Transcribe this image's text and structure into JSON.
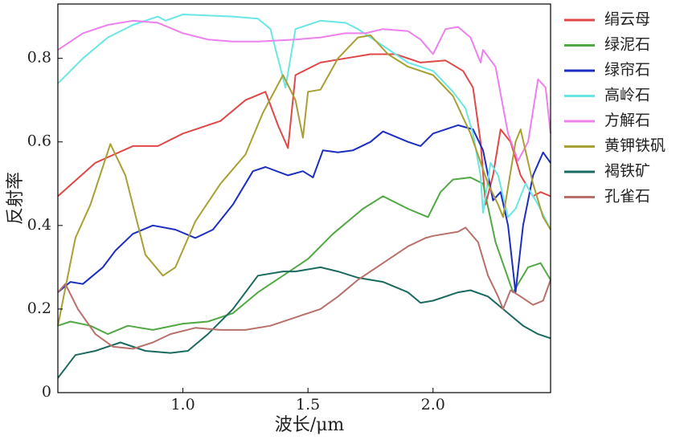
{
  "chart_data": {
    "type": "line",
    "x_label": "波长/μm",
    "y_label": "反射率",
    "xlim": [
      0.5,
      2.47
    ],
    "ylim": [
      0,
      0.93
    ],
    "xticks": [
      {
        "value": 1,
        "label": "1.0"
      },
      {
        "value": 1.5,
        "label": "1.5"
      },
      {
        "value": 2,
        "label": "2.0"
      }
    ],
    "yticks": [
      0,
      0.2,
      0.4,
      0.6,
      0.8
    ],
    "series": [
      {
        "name": "绢云母",
        "color": "#e04848",
        "x": [
          0.5,
          0.65,
          0.8,
          0.9,
          1.0,
          1.15,
          1.25,
          1.33,
          1.38,
          1.42,
          1.45,
          1.55,
          1.65,
          1.75,
          1.85,
          1.95,
          2.05,
          2.12,
          2.16,
          2.19,
          2.21,
          2.24,
          2.27,
          2.31,
          2.35,
          2.4,
          2.43,
          2.47
        ],
        "values": [
          0.47,
          0.55,
          0.59,
          0.59,
          0.62,
          0.65,
          0.7,
          0.72,
          0.64,
          0.585,
          0.76,
          0.79,
          0.8,
          0.81,
          0.81,
          0.79,
          0.795,
          0.77,
          0.73,
          0.6,
          0.45,
          0.52,
          0.63,
          0.6,
          0.52,
          0.47,
          0.48,
          0.47
        ]
      },
      {
        "name": "绿泥石",
        "color": "#52a844",
        "x": [
          0.5,
          0.55,
          0.63,
          0.7,
          0.78,
          0.88,
          1.0,
          1.1,
          1.2,
          1.3,
          1.4,
          1.5,
          1.6,
          1.72,
          1.8,
          1.9,
          1.98,
          2.03,
          2.08,
          2.15,
          2.2,
          2.25,
          2.32,
          2.38,
          2.43,
          2.47
        ],
        "values": [
          0.16,
          0.17,
          0.16,
          0.14,
          0.16,
          0.15,
          0.165,
          0.17,
          0.19,
          0.24,
          0.28,
          0.32,
          0.38,
          0.44,
          0.47,
          0.44,
          0.42,
          0.48,
          0.51,
          0.515,
          0.5,
          0.36,
          0.24,
          0.3,
          0.31,
          0.27
        ]
      },
      {
        "name": "绿帘石",
        "color": "#1c2ec0",
        "x": [
          0.5,
          0.55,
          0.6,
          0.68,
          0.73,
          0.8,
          0.88,
          0.97,
          1.05,
          1.12,
          1.2,
          1.28,
          1.33,
          1.42,
          1.48,
          1.52,
          1.56,
          1.62,
          1.68,
          1.75,
          1.8,
          1.9,
          1.95,
          2.0,
          2.1,
          2.16,
          2.2,
          2.24,
          2.27,
          2.3,
          2.33,
          2.36,
          2.4,
          2.44,
          2.47
        ],
        "values": [
          0.24,
          0.265,
          0.26,
          0.3,
          0.34,
          0.38,
          0.4,
          0.39,
          0.37,
          0.39,
          0.45,
          0.53,
          0.54,
          0.52,
          0.53,
          0.515,
          0.58,
          0.575,
          0.58,
          0.6,
          0.625,
          0.6,
          0.59,
          0.62,
          0.64,
          0.63,
          0.58,
          0.46,
          0.48,
          0.4,
          0.24,
          0.4,
          0.52,
          0.575,
          0.55
        ]
      },
      {
        "name": "高岭石",
        "color": "#6ae6e6",
        "x": [
          0.5,
          0.6,
          0.7,
          0.8,
          0.9,
          0.93,
          1.0,
          1.2,
          1.3,
          1.35,
          1.38,
          1.41,
          1.45,
          1.55,
          1.65,
          1.7,
          1.8,
          1.9,
          2.0,
          2.08,
          2.13,
          2.16,
          2.19,
          2.2,
          2.23,
          2.26,
          2.3,
          2.33,
          2.37,
          2.42,
          2.47
        ],
        "values": [
          0.74,
          0.8,
          0.85,
          0.88,
          0.9,
          0.89,
          0.905,
          0.9,
          0.895,
          0.87,
          0.8,
          0.73,
          0.87,
          0.89,
          0.885,
          0.87,
          0.83,
          0.79,
          0.77,
          0.72,
          0.68,
          0.62,
          0.52,
          0.43,
          0.55,
          0.52,
          0.42,
          0.44,
          0.5,
          0.45,
          0.39
        ]
      },
      {
        "name": "方解石",
        "color": "#ec80ec",
        "x": [
          0.5,
          0.6,
          0.7,
          0.8,
          0.9,
          1.0,
          1.1,
          1.2,
          1.3,
          1.45,
          1.55,
          1.65,
          1.73,
          1.8,
          1.9,
          1.95,
          2.0,
          2.05,
          2.1,
          2.15,
          2.19,
          2.2,
          2.25,
          2.3,
          2.34,
          2.38,
          2.42,
          2.45,
          2.47
        ],
        "values": [
          0.82,
          0.86,
          0.88,
          0.89,
          0.885,
          0.86,
          0.845,
          0.84,
          0.84,
          0.845,
          0.85,
          0.86,
          0.86,
          0.87,
          0.865,
          0.845,
          0.81,
          0.87,
          0.875,
          0.85,
          0.79,
          0.82,
          0.78,
          0.62,
          0.555,
          0.6,
          0.75,
          0.73,
          0.62
        ]
      },
      {
        "name": "黄钾铁矾",
        "color": "#a8a032",
        "x": [
          0.5,
          0.57,
          0.63,
          0.71,
          0.77,
          0.85,
          0.92,
          0.97,
          1.05,
          1.15,
          1.25,
          1.32,
          1.4,
          1.45,
          1.48,
          1.5,
          1.55,
          1.62,
          1.7,
          1.75,
          1.82,
          1.9,
          2.0,
          2.08,
          2.15,
          2.22,
          2.26,
          2.28,
          2.33,
          2.35,
          2.4,
          2.44,
          2.47
        ],
        "values": [
          0.16,
          0.37,
          0.45,
          0.595,
          0.52,
          0.33,
          0.28,
          0.3,
          0.41,
          0.5,
          0.57,
          0.67,
          0.76,
          0.7,
          0.61,
          0.72,
          0.725,
          0.8,
          0.85,
          0.855,
          0.81,
          0.78,
          0.76,
          0.71,
          0.62,
          0.5,
          0.45,
          0.42,
          0.6,
          0.63,
          0.5,
          0.42,
          0.39
        ]
      },
      {
        "name": "褐铁矿",
        "color": "#1b6a60",
        "x": [
          0.5,
          0.57,
          0.65,
          0.75,
          0.85,
          0.95,
          1.02,
          1.1,
          1.2,
          1.3,
          1.4,
          1.45,
          1.55,
          1.62,
          1.7,
          1.8,
          1.9,
          1.95,
          2.0,
          2.1,
          2.15,
          2.22,
          2.3,
          2.36,
          2.42,
          2.47
        ],
        "values": [
          0.035,
          0.09,
          0.1,
          0.12,
          0.1,
          0.095,
          0.1,
          0.14,
          0.2,
          0.28,
          0.29,
          0.29,
          0.3,
          0.29,
          0.275,
          0.265,
          0.24,
          0.215,
          0.22,
          0.24,
          0.245,
          0.23,
          0.19,
          0.16,
          0.14,
          0.13
        ]
      },
      {
        "name": "孔雀石",
        "color": "#b8706a",
        "x": [
          0.5,
          0.53,
          0.58,
          0.65,
          0.72,
          0.8,
          0.88,
          0.95,
          1.05,
          1.15,
          1.25,
          1.35,
          1.45,
          1.55,
          1.62,
          1.7,
          1.8,
          1.9,
          1.97,
          2.0,
          2.05,
          2.1,
          2.13,
          2.18,
          2.22,
          2.26,
          2.28,
          2.31,
          2.35,
          2.4,
          2.44,
          2.47
        ],
        "values": [
          0.24,
          0.26,
          0.2,
          0.14,
          0.11,
          0.105,
          0.12,
          0.14,
          0.155,
          0.15,
          0.15,
          0.16,
          0.18,
          0.2,
          0.23,
          0.27,
          0.31,
          0.35,
          0.37,
          0.375,
          0.38,
          0.385,
          0.395,
          0.36,
          0.28,
          0.23,
          0.2,
          0.245,
          0.23,
          0.21,
          0.22,
          0.27
        ]
      }
    ]
  }
}
